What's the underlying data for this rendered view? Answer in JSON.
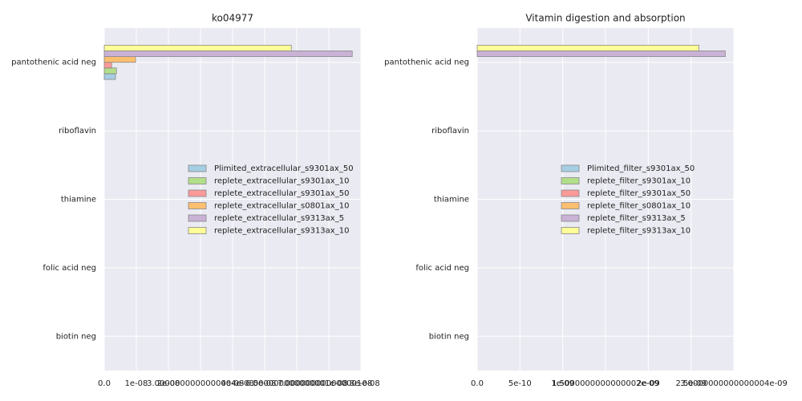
{
  "chart_data": [
    {
      "type": "barh",
      "title": "ko04977",
      "categories": [
        "pantothenic acid neg",
        "riboflavin",
        "thiamine",
        "folic acid neg",
        "biotin neg"
      ],
      "series": [
        {
          "name": "Plimited_extracellular_s9301ax_50",
          "color": "#a6cee3",
          "values": [
            3.5e-09,
            0,
            0,
            0,
            0
          ]
        },
        {
          "name": "replete_extracellular_s9301ax_10",
          "color": "#b2df8a",
          "values": [
            3.8e-09,
            0,
            0,
            0,
            0
          ]
        },
        {
          "name": "replete_extracellular_s9301ax_50",
          "color": "#fb9a99",
          "values": [
            2.3e-09,
            0,
            0,
            0,
            0
          ]
        },
        {
          "name": "replete_extracellular_s0801ax_10",
          "color": "#fdbf6f",
          "values": [
            9.8e-09,
            0,
            0,
            0,
            0
          ]
        },
        {
          "name": "replete_extracellular_s9313ax_5",
          "color": "#cab2d6",
          "values": [
            7.73e-08,
            0,
            0,
            0,
            0
          ]
        },
        {
          "name": "replete_extracellular_s9313ax_10",
          "color": "#ffff99",
          "values": [
            5.83e-08,
            0,
            0,
            0,
            0
          ]
        }
      ],
      "xlim": [
        0,
        8e-08
      ],
      "xticks": [
        {
          "value": 0,
          "label": "0.0"
        },
        {
          "value": 1e-08,
          "label": "1e-08"
        },
        {
          "value": 2e-08,
          "label": "2e-08"
        },
        {
          "value": 3e-08,
          "label": "3.0000000000000004e-08"
        },
        {
          "value": 4e-08,
          "label": "4e-08"
        },
        {
          "value": 5e-08,
          "label": "5e-08"
        },
        {
          "value": 6e-08,
          "label": "6.000000000000001e-08"
        },
        {
          "value": 7e-08,
          "label": "7.000000000000001e-08"
        },
        {
          "value": 8e-08,
          "label": "8e-08"
        }
      ],
      "grid": true,
      "legend": "center right"
    },
    {
      "type": "barh",
      "title": "Vitamin digestion and absorption",
      "categories": [
        "pantothenic acid neg",
        "riboflavin",
        "thiamine",
        "folic acid neg",
        "biotin neg"
      ],
      "series": [
        {
          "name": "Plimited_filter_s9301ax_50",
          "color": "#a6cee3",
          "values": [
            0,
            0,
            0,
            0,
            0
          ]
        },
        {
          "name": "replete_filter_s9301ax_10",
          "color": "#b2df8a",
          "values": [
            0,
            0,
            0,
            0,
            0
          ]
        },
        {
          "name": "replete_filter_s9301ax_50",
          "color": "#fb9a99",
          "values": [
            0,
            0,
            0,
            0,
            0
          ]
        },
        {
          "name": "replete_filter_s0801ax_10",
          "color": "#fdbf6f",
          "values": [
            0,
            0,
            0,
            0,
            0
          ]
        },
        {
          "name": "replete_filter_s9313ax_5",
          "color": "#cab2d6",
          "values": [
            2.9e-09,
            0,
            0,
            0,
            0
          ]
        },
        {
          "name": "replete_filter_s9313ax_10",
          "color": "#ffff99",
          "values": [
            2.59e-09,
            0,
            0,
            0,
            0
          ]
        }
      ],
      "xlim": [
        0,
        3e-09
      ],
      "xticks": [
        {
          "value": 0,
          "label": "0.0"
        },
        {
          "value": 5e-10,
          "label": "5e-10"
        },
        {
          "value": 1e-09,
          "label": "1e-09"
        },
        {
          "value": 1.5e-09,
          "label": "1.5000000000000002e-09"
        },
        {
          "value": 2e-09,
          "label": "2e-09"
        },
        {
          "value": 2.5e-09,
          "label": "2.5e-09"
        },
        {
          "value": 3e-09,
          "label": "3.0000000000000004e-09"
        }
      ],
      "grid": true,
      "legend": "center right"
    }
  ]
}
